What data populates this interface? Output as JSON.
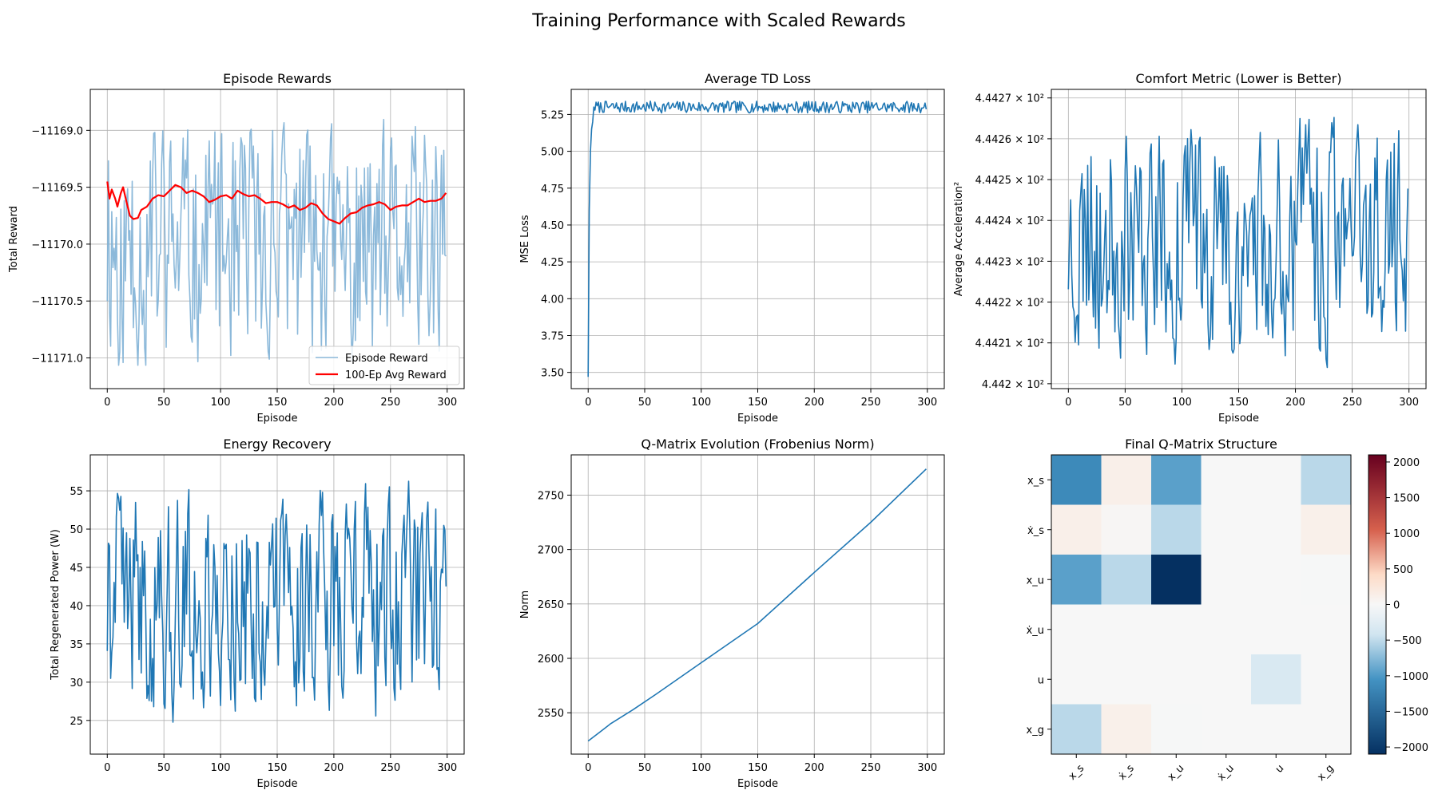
{
  "suptitle": "Training Performance with Scaled Rewards",
  "colors": {
    "line": "#1f77b4",
    "avg": "#ff0000",
    "grid": "#b0b0b0"
  },
  "chart_data": [
    {
      "id": "rewards",
      "type": "line",
      "title": "Episode Rewards",
      "xlabel": "Episode",
      "ylabel": "Total Reward",
      "xlim": [
        -15,
        315
      ],
      "ylim": [
        -11171.27,
        -11168.64
      ],
      "xticks": [
        0,
        50,
        100,
        150,
        200,
        250,
        300
      ],
      "yticks": [
        -11171.0,
        -11170.5,
        -11170.0,
        -11169.5,
        -11169.0
      ],
      "ytick_labels": [
        "−11171.0",
        "−11170.5",
        "−11170.0",
        "−11169.5",
        "−11169.0"
      ],
      "grid": true,
      "legend": "lower-right",
      "series": [
        {
          "name": "Episode Reward",
          "color": "#7fb1d6",
          "alpha": 0.9,
          "gen": "reward"
        },
        {
          "name": "100-Ep Avg Reward",
          "color": "#ff0000",
          "width": 2.2,
          "points": [
            [
              0,
              -11169.45
            ],
            [
              2,
              -11169.6
            ],
            [
              4,
              -11169.52
            ],
            [
              7,
              -11169.6
            ],
            [
              9,
              -11169.67
            ],
            [
              12,
              -11169.55
            ],
            [
              14,
              -11169.5
            ],
            [
              17,
              -11169.63
            ],
            [
              20,
              -11169.75
            ],
            [
              23,
              -11169.78
            ],
            [
              27,
              -11169.77
            ],
            [
              30,
              -11169.7
            ],
            [
              35,
              -11169.67
            ],
            [
              40,
              -11169.6
            ],
            [
              45,
              -11169.57
            ],
            [
              50,
              -11169.58
            ],
            [
              55,
              -11169.53
            ],
            [
              60,
              -11169.48
            ],
            [
              65,
              -11169.5
            ],
            [
              70,
              -11169.55
            ],
            [
              75,
              -11169.53
            ],
            [
              80,
              -11169.55
            ],
            [
              85,
              -11169.58
            ],
            [
              90,
              -11169.63
            ],
            [
              95,
              -11169.61
            ],
            [
              100,
              -11169.58
            ],
            [
              105,
              -11169.57
            ],
            [
              110,
              -11169.6
            ],
            [
              115,
              -11169.53
            ],
            [
              120,
              -11169.56
            ],
            [
              125,
              -11169.58
            ],
            [
              130,
              -11169.57
            ],
            [
              135,
              -11169.6
            ],
            [
              140,
              -11169.64
            ],
            [
              145,
              -11169.63
            ],
            [
              150,
              -11169.63
            ],
            [
              155,
              -11169.65
            ],
            [
              160,
              -11169.68
            ],
            [
              165,
              -11169.66
            ],
            [
              170,
              -11169.7
            ],
            [
              175,
              -11169.68
            ],
            [
              180,
              -11169.64
            ],
            [
              185,
              -11169.66
            ],
            [
              190,
              -11169.73
            ],
            [
              195,
              -11169.78
            ],
            [
              200,
              -11169.8
            ],
            [
              205,
              -11169.82
            ],
            [
              210,
              -11169.77
            ],
            [
              215,
              -11169.73
            ],
            [
              220,
              -11169.72
            ],
            [
              225,
              -11169.68
            ],
            [
              230,
              -11169.66
            ],
            [
              235,
              -11169.65
            ],
            [
              240,
              -11169.63
            ],
            [
              245,
              -11169.65
            ],
            [
              250,
              -11169.7
            ],
            [
              255,
              -11169.67
            ],
            [
              260,
              -11169.66
            ],
            [
              265,
              -11169.66
            ],
            [
              270,
              -11169.63
            ],
            [
              275,
              -11169.6
            ],
            [
              280,
              -11169.63
            ],
            [
              285,
              -11169.62
            ],
            [
              290,
              -11169.62
            ],
            [
              295,
              -11169.6
            ],
            [
              299,
              -11169.55
            ]
          ]
        }
      ]
    },
    {
      "id": "tdloss",
      "type": "line",
      "title": "Average TD Loss",
      "xlabel": "Episode",
      "ylabel": "MSE Loss",
      "xlim": [
        -15,
        315
      ],
      "ylim": [
        3.39,
        5.42
      ],
      "xticks": [
        0,
        50,
        100,
        150,
        200,
        250,
        300
      ],
      "yticks": [
        3.5,
        3.75,
        4.0,
        4.25,
        4.5,
        4.75,
        5.0,
        5.25
      ],
      "ytick_labels": [
        "3.50",
        "3.75",
        "4.00",
        "4.25",
        "4.50",
        "4.75",
        "5.00",
        "5.25"
      ],
      "grid": true,
      "series": [
        {
          "color": "#1f77b4",
          "gen": "td"
        }
      ]
    },
    {
      "id": "comfort",
      "type": "line",
      "title": "Comfort Metric (Lower is Better)",
      "xlabel": "Episode",
      "ylabel": "Average Acceleration²",
      "ylabel_offset": 0.005,
      "yscale": "log",
      "xlim": [
        -15,
        315
      ],
      "ylim": [
        444.1988,
        444.2721
      ],
      "xticks": [
        0,
        50,
        100,
        150,
        200,
        250,
        300
      ],
      "yticks": [
        444.2,
        444.21,
        444.22,
        444.23,
        444.24,
        444.25,
        444.26,
        444.27
      ],
      "ytick_labels": [
        "4.442 × 10²",
        "4.4421 × 10²",
        "4.4422 × 10²",
        "4.4423 × 10²",
        "4.4424 × 10²",
        "4.4425 × 10²",
        "4.4426 × 10²",
        "4.4427 × 10²"
      ],
      "grid": true,
      "series": [
        {
          "color": "#1f77b4",
          "gen": "comfort"
        }
      ]
    },
    {
      "id": "energy",
      "type": "line",
      "title": "Energy Recovery",
      "xlabel": "Episode",
      "ylabel": "Total Regenerated Power (W)",
      "xlim": [
        -15,
        315
      ],
      "ylim": [
        20.6,
        59.7
      ],
      "xticks": [
        0,
        50,
        100,
        150,
        200,
        250,
        300
      ],
      "yticks": [
        25,
        30,
        35,
        40,
        45,
        50,
        55
      ],
      "ytick_labels": [
        "25",
        "30",
        "35",
        "40",
        "45",
        "50",
        "55"
      ],
      "grid": true,
      "series": [
        {
          "color": "#1f77b4",
          "gen": "energy"
        }
      ]
    },
    {
      "id": "qnorm",
      "type": "line",
      "title": "Q-Matrix Evolution (Frobenius Norm)",
      "xlabel": "Episode",
      "ylabel": "Norm",
      "xlim": [
        -15,
        315
      ],
      "ylim": [
        2512,
        2787
      ],
      "xticks": [
        0,
        50,
        100,
        150,
        200,
        250,
        300
      ],
      "yticks": [
        2550,
        2600,
        2650,
        2700,
        2750
      ],
      "ytick_labels": [
        "2550",
        "2600",
        "2650",
        "2700",
        "2750"
      ],
      "grid": true,
      "series": [
        {
          "color": "#1f77b4",
          "points": [
            [
              0,
              2524
            ],
            [
              10,
              2532
            ],
            [
              20,
              2540
            ],
            [
              40,
              2553
            ],
            [
              60,
              2567
            ],
            [
              100,
              2596
            ],
            [
              150,
              2632
            ],
            [
              200,
              2679
            ],
            [
              250,
              2725
            ],
            [
              299,
              2774
            ]
          ]
        }
      ]
    },
    {
      "id": "qmatrix",
      "type": "heatmap",
      "title": "Final Q-Matrix Structure",
      "labels": [
        "x_s",
        "ẋ_s",
        "x_u",
        "ẋ_u",
        "u",
        "x_g"
      ],
      "vmin": -2100,
      "vmax": 2100,
      "colorbar_ticks": [
        2000,
        1500,
        1000,
        500,
        0,
        -500,
        -1000,
        -1500,
        -2000
      ],
      "colorbar_tick_labels": [
        "2000",
        "1500",
        "1000",
        "500",
        "0",
        "−500",
        "−1000",
        "−1500",
        "−2000"
      ],
      "values": [
        [
          -1150,
          120,
          -950,
          0,
          0,
          -520
        ],
        [
          120,
          30,
          -520,
          0,
          0,
          110
        ],
        [
          -950,
          -520,
          -2100,
          0,
          0,
          -10
        ],
        [
          0,
          0,
          0,
          0,
          0,
          0
        ],
        [
          0,
          0,
          0,
          0,
          -330,
          0
        ],
        [
          -520,
          110,
          -10,
          0,
          0,
          0
        ]
      ]
    }
  ]
}
